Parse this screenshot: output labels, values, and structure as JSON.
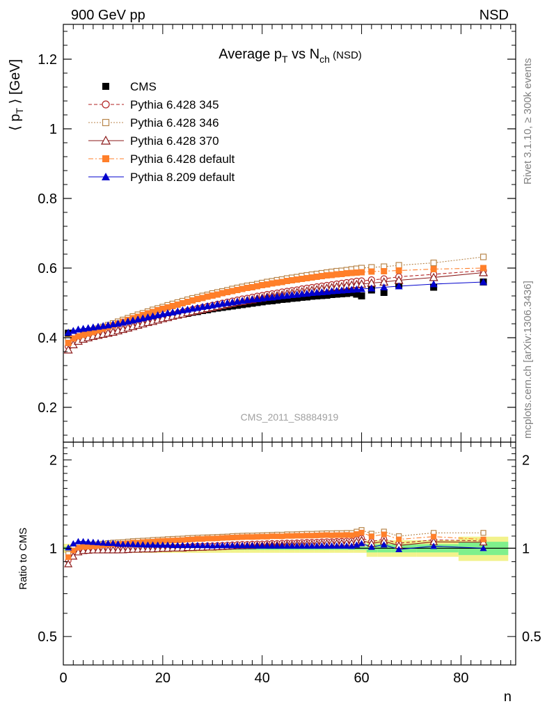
{
  "header": {
    "left": "900 GeV pp",
    "right": "NSD"
  },
  "side": {
    "rivet": "Rivet 3.1.10, ≥ 300k events",
    "mcplots": "mcplots.cern.ch [arXiv:1306.3436]"
  },
  "title": {
    "main": "Average p",
    "main_sub": "T",
    "mid": " vs N",
    "mid_sub": "ch",
    "tail": " (NSD)"
  },
  "watermark": "CMS_2011_S8884919",
  "axes": {
    "ylabel_pre": "⟨ p",
    "ylabel_sub": "T",
    "ylabel_post": " ⟩ [GeV]",
    "ratio_ylabel": "Ratio to CMS",
    "xlabel": "n"
  },
  "chart_data": {
    "type": "scatter",
    "x_range": [
      0,
      91
    ],
    "main_ylim": [
      0.1,
      1.3
    ],
    "ratio_ylim": [
      0.4,
      2.3
    ],
    "main_yticks": [
      "0.2",
      "0.4",
      "0.6",
      "0.8",
      "1",
      "1.2"
    ],
    "main_ytick_values": [
      0.2,
      0.4,
      0.6,
      0.8,
      1.0,
      1.2
    ],
    "ratio_yticks": [
      "0.5",
      "1",
      "2"
    ],
    "ratio_ytick_values": [
      0.5,
      1,
      2
    ],
    "xticks": [
      "0",
      "20",
      "40",
      "60",
      "80"
    ],
    "xtick_values": [
      0,
      20,
      40,
      60,
      80
    ],
    "legend_position": "top-left",
    "x": [
      1,
      2,
      3,
      4,
      5,
      6,
      7,
      8,
      9,
      10,
      11,
      12,
      13,
      14,
      15,
      16,
      17,
      18,
      19,
      20,
      21,
      22,
      23,
      24,
      25,
      26,
      27,
      28,
      29,
      30,
      31,
      32,
      33,
      34,
      35,
      36,
      37,
      38,
      39,
      40,
      41,
      42,
      43,
      44,
      45,
      46,
      47,
      48,
      49,
      50,
      51,
      52,
      53,
      54,
      55,
      56,
      57,
      58,
      59,
      60,
      62,
      64.5,
      67.5,
      74.5,
      84.5
    ],
    "series": [
      {
        "name": "CMS",
        "style": "data",
        "color": "#000000",
        "marker": "square-filled",
        "dash": "none",
        "values": [
          0.413,
          0.405,
          0.402,
          0.404,
          0.407,
          0.41,
          0.413,
          0.416,
          0.419,
          0.422,
          0.426,
          0.43,
          0.433,
          0.436,
          0.44,
          0.443,
          0.447,
          0.45,
          0.453,
          0.456,
          0.459,
          0.462,
          0.465,
          0.468,
          0.47,
          0.473,
          0.475,
          0.478,
          0.48,
          0.483,
          0.485,
          0.487,
          0.489,
          0.491,
          0.493,
          0.495,
          0.497,
          0.499,
          0.501,
          0.503,
          0.505,
          0.506,
          0.508,
          0.51,
          0.511,
          0.513,
          0.514,
          0.516,
          0.517,
          0.519,
          0.52,
          0.521,
          0.522,
          0.524,
          0.525,
          0.526,
          0.527,
          0.529,
          0.525,
          0.52,
          0.537,
          0.53,
          0.553,
          0.545,
          0.56
        ]
      },
      {
        "name": "Pythia 6.428 345",
        "color": "#b22222",
        "marker": "circle-open",
        "dash": "5,3",
        "values": [
          0.375,
          0.39,
          0.398,
          0.402,
          0.405,
          0.408,
          0.41,
          0.413,
          0.416,
          0.42,
          0.424,
          0.428,
          0.432,
          0.436,
          0.44,
          0.444,
          0.448,
          0.452,
          0.456,
          0.46,
          0.463,
          0.467,
          0.47,
          0.474,
          0.477,
          0.481,
          0.484,
          0.487,
          0.49,
          0.493,
          0.496,
          0.499,
          0.502,
          0.505,
          0.508,
          0.511,
          0.513,
          0.516,
          0.519,
          0.521,
          0.524,
          0.526,
          0.528,
          0.531,
          0.533,
          0.535,
          0.537,
          0.54,
          0.542,
          0.544,
          0.546,
          0.548,
          0.55,
          0.552,
          0.554,
          0.556,
          0.558,
          0.56,
          0.562,
          0.563,
          0.566,
          0.569,
          0.575,
          0.582,
          0.593
        ]
      },
      {
        "name": "Pythia 6.428 346",
        "color": "#b8864b",
        "marker": "square-open",
        "dash": "2,2",
        "values": [
          0.395,
          0.405,
          0.41,
          0.413,
          0.417,
          0.421,
          0.426,
          0.431,
          0.436,
          0.441,
          0.446,
          0.451,
          0.456,
          0.461,
          0.466,
          0.47,
          0.475,
          0.48,
          0.484,
          0.488,
          0.493,
          0.497,
          0.501,
          0.505,
          0.509,
          0.513,
          0.516,
          0.52,
          0.523,
          0.527,
          0.53,
          0.533,
          0.536,
          0.54,
          0.543,
          0.546,
          0.549,
          0.551,
          0.554,
          0.557,
          0.56,
          0.562,
          0.565,
          0.567,
          0.57,
          0.572,
          0.574,
          0.577,
          0.579,
          0.581,
          0.583,
          0.585,
          0.587,
          0.589,
          0.591,
          0.592,
          0.594,
          0.596,
          0.598,
          0.6,
          0.602,
          0.604,
          0.608,
          0.615,
          0.632
        ]
      },
      {
        "name": "Pythia 6.428 370",
        "color": "#8b1a1a",
        "marker": "triangle-open",
        "dash": "none",
        "values": [
          0.365,
          0.38,
          0.39,
          0.396,
          0.4,
          0.404,
          0.407,
          0.41,
          0.413,
          0.416,
          0.42,
          0.424,
          0.428,
          0.432,
          0.436,
          0.44,
          0.444,
          0.447,
          0.451,
          0.455,
          0.458,
          0.462,
          0.465,
          0.468,
          0.472,
          0.475,
          0.478,
          0.481,
          0.484,
          0.487,
          0.49,
          0.493,
          0.496,
          0.499,
          0.502,
          0.504,
          0.507,
          0.509,
          0.512,
          0.514,
          0.517,
          0.519,
          0.521,
          0.523,
          0.526,
          0.528,
          0.53,
          0.532,
          0.534,
          0.536,
          0.538,
          0.54,
          0.542,
          0.544,
          0.546,
          0.547,
          0.549,
          0.551,
          0.553,
          0.554,
          0.557,
          0.56,
          0.565,
          0.573,
          0.587
        ]
      },
      {
        "name": "Pythia 6.428 default",
        "color": "#ff7f2a",
        "marker": "square-filled",
        "dash": "7,3,2,3",
        "values": [
          0.385,
          0.398,
          0.404,
          0.408,
          0.412,
          0.416,
          0.421,
          0.426,
          0.431,
          0.436,
          0.441,
          0.446,
          0.451,
          0.456,
          0.46,
          0.465,
          0.47,
          0.474,
          0.479,
          0.483,
          0.487,
          0.491,
          0.495,
          0.499,
          0.503,
          0.507,
          0.511,
          0.514,
          0.518,
          0.521,
          0.524,
          0.528,
          0.531,
          0.534,
          0.537,
          0.54,
          0.543,
          0.545,
          0.548,
          0.551,
          0.553,
          0.556,
          0.558,
          0.56,
          0.563,
          0.565,
          0.567,
          0.569,
          0.571,
          0.573,
          0.575,
          0.577,
          0.579,
          0.58,
          0.582,
          0.583,
          0.585,
          0.586,
          0.587,
          0.588,
          0.59,
          0.591,
          0.593,
          0.597,
          0.6
        ]
      },
      {
        "name": "Pythia 8.209 default",
        "color": "#0000cc",
        "marker": "triangle-filled",
        "dash": "none",
        "values": [
          0.415,
          0.42,
          0.424,
          0.426,
          0.428,
          0.43,
          0.432,
          0.434,
          0.436,
          0.439,
          0.441,
          0.444,
          0.447,
          0.45,
          0.453,
          0.456,
          0.459,
          0.462,
          0.465,
          0.468,
          0.471,
          0.473,
          0.476,
          0.479,
          0.481,
          0.484,
          0.486,
          0.489,
          0.491,
          0.493,
          0.496,
          0.498,
          0.5,
          0.502,
          0.504,
          0.506,
          0.508,
          0.51,
          0.511,
          0.513,
          0.515,
          0.516,
          0.518,
          0.52,
          0.521,
          0.523,
          0.524,
          0.526,
          0.527,
          0.529,
          0.53,
          0.531,
          0.532,
          0.534,
          0.535,
          0.536,
          0.537,
          0.538,
          0.539,
          0.54,
          0.542,
          0.545,
          0.548,
          0.554,
          0.56
        ]
      }
    ]
  }
}
